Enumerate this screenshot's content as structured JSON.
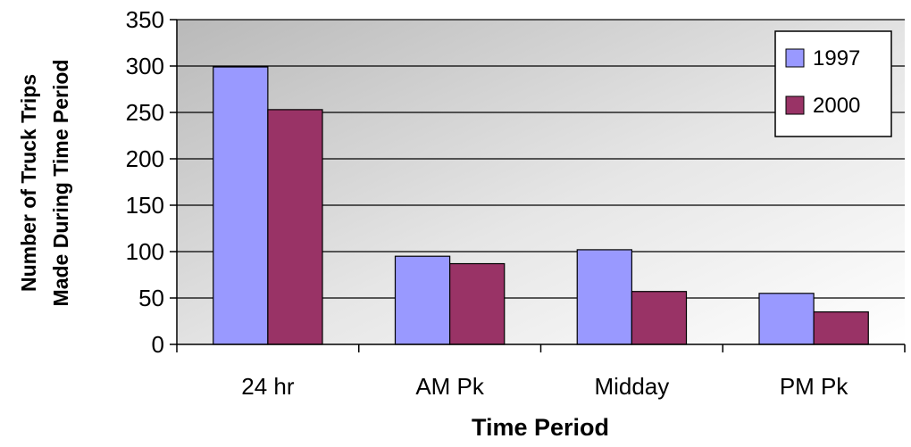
{
  "chart_data": {
    "type": "bar",
    "title": "",
    "xlabel": "Time Period",
    "ylabel_line1": "Number of Truck Trips",
    "ylabel_line2": "Made During Time Period",
    "categories": [
      "24 hr",
      "AM Pk",
      "Midday",
      "PM Pk"
    ],
    "series": [
      {
        "name": "1997",
        "values": [
          299,
          95,
          102,
          55
        ],
        "color": "#9999FF"
      },
      {
        "name": "2000",
        "values": [
          253,
          87,
          57,
          35
        ],
        "color": "#993366"
      }
    ],
    "ylim": [
      0,
      350
    ],
    "yticks": [
      0,
      50,
      100,
      150,
      200,
      250,
      300,
      350
    ],
    "grid": true,
    "legend_position": "top-right",
    "plot_background": "gradient-gray"
  }
}
